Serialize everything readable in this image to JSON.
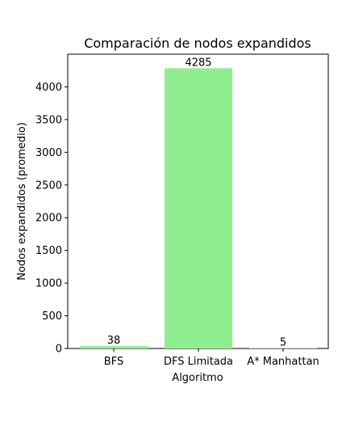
{
  "chart_data": {
    "type": "bar",
    "title": "Comparación de nodos expandidos",
    "xlabel": "Algoritmo",
    "ylabel": "Nodos expandidos (promedio)",
    "categories": [
      "BFS",
      "DFS Limitada",
      "A* Manhattan"
    ],
    "values": [
      38,
      4285,
      5
    ],
    "data_labels": [
      "38",
      "4285",
      "5"
    ],
    "ylim": [
      0,
      4500
    ],
    "yticks": [
      0,
      500,
      1000,
      1500,
      2000,
      2500,
      3000,
      3500,
      4000
    ],
    "ytick_labels": [
      "0",
      "500",
      "1000",
      "1500",
      "2000",
      "2500",
      "3000",
      "3500",
      "4000"
    ],
    "bar_color": "#90ee90",
    "grid": false,
    "legend": "none"
  }
}
